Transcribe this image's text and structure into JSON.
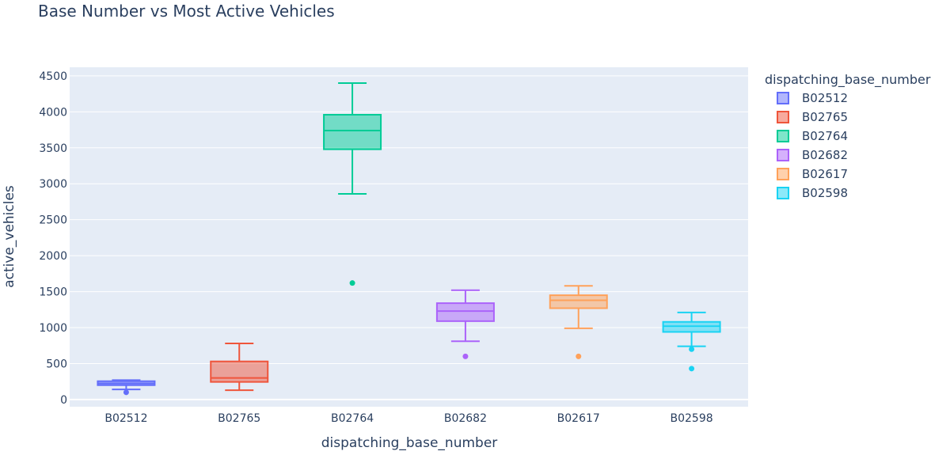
{
  "chart_data": {
    "type": "box",
    "title": "Base Number vs Most Active Vehicles",
    "xlabel": "dispatching_base_number",
    "ylabel": "active_vehicles",
    "ylim": [
      -100,
      4620
    ],
    "yticks": [
      0,
      500,
      1000,
      1500,
      2000,
      2500,
      3000,
      3500,
      4000,
      4500
    ],
    "grid": true,
    "legend_title": "dispatching_base_number",
    "legend_position": "top-right",
    "categories": [
      "B02512",
      "B02765",
      "B02764",
      "B02682",
      "B02617",
      "B02598"
    ],
    "series": [
      {
        "name": "B02512",
        "color": "#636efa",
        "min": 140,
        "q1": 200,
        "median": 225,
        "q3": 255,
        "max": 270,
        "outliers": [
          100
        ]
      },
      {
        "name": "B02765",
        "color": "#ef553b",
        "min": 130,
        "q1": 245,
        "median": 300,
        "q3": 530,
        "max": 780,
        "outliers": []
      },
      {
        "name": "B02764",
        "color": "#00cc96",
        "min": 2860,
        "q1": 3480,
        "median": 3740,
        "q3": 3960,
        "max": 4400,
        "outliers": [
          1620
        ]
      },
      {
        "name": "B02682",
        "color": "#ab63fa",
        "min": 810,
        "q1": 1090,
        "median": 1230,
        "q3": 1340,
        "max": 1520,
        "outliers": [
          600
        ]
      },
      {
        "name": "B02617",
        "color": "#ffa15a",
        "min": 990,
        "q1": 1270,
        "median": 1380,
        "q3": 1450,
        "max": 1580,
        "outliers": [
          600
        ]
      },
      {
        "name": "B02598",
        "color": "#19d3f3",
        "min": 740,
        "q1": 940,
        "median": 1020,
        "q3": 1080,
        "max": 1210,
        "outliers": [
          700,
          430
        ]
      }
    ]
  }
}
